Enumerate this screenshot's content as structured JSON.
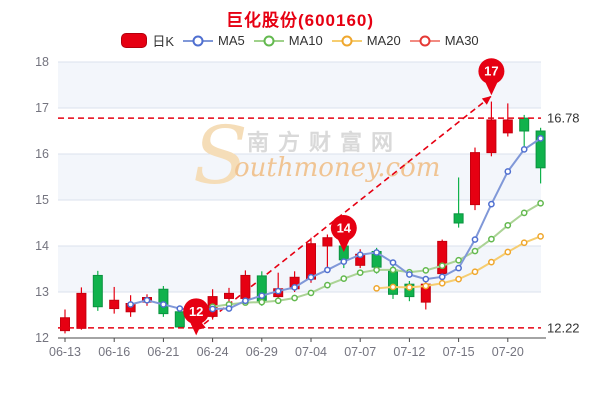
{
  "header": {
    "title": "巨化股份(600160)"
  },
  "legend": {
    "items": [
      {
        "label": "日K"
      },
      {
        "label": "MA5"
      },
      {
        "label": "MA10"
      },
      {
        "label": "MA20"
      },
      {
        "label": "MA30"
      }
    ]
  },
  "watermark": {
    "initial": "S",
    "brand_cn": "南方财富网",
    "brand_en": "outhmoney.com"
  },
  "colors": {
    "title": "#e60012",
    "up": "#e60012",
    "up_border": "#c5000f",
    "down": "#10b24c",
    "down_border": "#0a9340",
    "ma5": "#8098d8",
    "ma5_ring": "#4f6fd0",
    "ma10": "#abd395",
    "ma10_ring": "#63b94f",
    "ma20": "#f6cd70",
    "ma20_ring": "#efa72e",
    "ref": "#e60012",
    "badge": "#e60012",
    "grid": "#dbe2ee",
    "band": "#f3f6fb",
    "axis": "#4a4a4a",
    "tick_text": "#74747f",
    "label_text": "#333333",
    "watermark_cn": "#d9d9d9",
    "watermark_en": "#f0c493",
    "watermark_s": "#f5ddb8"
  },
  "chart_data": {
    "type": "candlestick",
    "title": "巨化股份(600160)",
    "ylim": [
      12,
      18
    ],
    "y_ticks": [
      12,
      13,
      14,
      15,
      16,
      17,
      18
    ],
    "grid": true,
    "legend_position": "top",
    "dates": [
      "06-13",
      "06-14",
      "06-15",
      "06-16",
      "06-17",
      "06-20",
      "06-21",
      "06-22",
      "06-23",
      "06-24",
      "06-27",
      "06-28",
      "06-29",
      "06-30",
      "07-01",
      "07-04",
      "07-05",
      "07-06",
      "07-07",
      "07-08",
      "07-11",
      "07-12",
      "07-13",
      "07-14",
      "07-15",
      "07-18",
      "07-19",
      "07-20",
      "07-21",
      "07-22"
    ],
    "x_tick_indices": [
      0,
      3,
      6,
      9,
      12,
      15,
      18,
      21,
      24,
      27
    ],
    "x_tick_labels": [
      "06-13",
      "06-16",
      "06-21",
      "06-24",
      "06-29",
      "07-04",
      "07-07",
      "07-12",
      "07-15",
      "07-20"
    ],
    "candles": [
      {
        "date": "06-13",
        "open": 12.16,
        "high": 12.62,
        "low": 12.1,
        "close": 12.44
      },
      {
        "date": "06-14",
        "open": 12.21,
        "high": 13.1,
        "low": 12.18,
        "close": 12.97
      },
      {
        "date": "06-15",
        "open": 13.36,
        "high": 13.46,
        "low": 12.59,
        "close": 12.68
      },
      {
        "date": "06-16",
        "open": 12.64,
        "high": 13.11,
        "low": 12.53,
        "close": 12.82
      },
      {
        "date": "06-17",
        "open": 12.57,
        "high": 12.93,
        "low": 12.46,
        "close": 12.75
      },
      {
        "date": "06-20",
        "open": 12.78,
        "high": 12.95,
        "low": 12.7,
        "close": 12.88
      },
      {
        "date": "06-21",
        "open": 13.06,
        "high": 13.13,
        "low": 12.46,
        "close": 12.53
      },
      {
        "date": "06-22",
        "open": 12.57,
        "high": 12.68,
        "low": 12.22,
        "close": 12.24
      },
      {
        "date": "06-23",
        "open": 12.3,
        "high": 12.64,
        "low": 12.22,
        "close": 12.58
      },
      {
        "date": "06-24",
        "open": 12.47,
        "high": 13.06,
        "low": 12.4,
        "close": 12.9
      },
      {
        "date": "06-27",
        "open": 12.86,
        "high": 13.09,
        "low": 12.79,
        "close": 12.97
      },
      {
        "date": "06-28",
        "open": 12.86,
        "high": 13.47,
        "low": 12.77,
        "close": 13.36
      },
      {
        "date": "06-29",
        "open": 13.35,
        "high": 13.45,
        "low": 12.7,
        "close": 12.8
      },
      {
        "date": "06-30",
        "open": 12.9,
        "high": 13.42,
        "low": 12.79,
        "close": 13.07
      },
      {
        "date": "07-01",
        "open": 13.07,
        "high": 13.45,
        "low": 13.0,
        "close": 13.32
      },
      {
        "date": "07-04",
        "open": 13.28,
        "high": 14.18,
        "low": 13.2,
        "close": 14.05
      },
      {
        "date": "07-05",
        "open": 14.0,
        "high": 14.25,
        "low": 13.42,
        "close": 14.18
      },
      {
        "date": "07-06",
        "open": 14.0,
        "high": 14.05,
        "low": 13.52,
        "close": 13.7
      },
      {
        "date": "07-07",
        "open": 13.58,
        "high": 13.93,
        "low": 13.52,
        "close": 13.82
      },
      {
        "date": "07-08",
        "open": 13.88,
        "high": 13.96,
        "low": 13.4,
        "close": 13.54
      },
      {
        "date": "07-11",
        "open": 13.48,
        "high": 13.58,
        "low": 12.85,
        "close": 12.95
      },
      {
        "date": "07-12",
        "open": 13.17,
        "high": 13.24,
        "low": 12.8,
        "close": 12.9
      },
      {
        "date": "07-13",
        "open": 12.78,
        "high": 13.22,
        "low": 12.62,
        "close": 13.17
      },
      {
        "date": "07-14",
        "open": 13.4,
        "high": 14.14,
        "low": 13.36,
        "close": 14.1
      },
      {
        "date": "07-15",
        "open": 14.7,
        "high": 15.49,
        "low": 14.4,
        "close": 14.5
      },
      {
        "date": "07-18",
        "open": 14.9,
        "high": 16.14,
        "low": 14.78,
        "close": 16.03
      },
      {
        "date": "07-19",
        "open": 16.03,
        "high": 17.14,
        "low": 15.95,
        "close": 16.74
      },
      {
        "date": "07-20",
        "open": 16.46,
        "high": 17.1,
        "low": 16.38,
        "close": 16.74
      },
      {
        "date": "07-21",
        "open": 16.78,
        "high": 16.85,
        "low": 16.17,
        "close": 16.5
      },
      {
        "date": "07-22",
        "open": 16.5,
        "high": 16.57,
        "low": 15.36,
        "close": 15.7
      }
    ],
    "series": [
      {
        "name": "MA5",
        "values": [
          null,
          null,
          null,
          null,
          12.73,
          12.82,
          12.73,
          12.64,
          12.6,
          12.63,
          12.64,
          12.81,
          12.92,
          13.02,
          13.1,
          13.32,
          13.48,
          13.66,
          13.81,
          13.86,
          13.64,
          13.38,
          13.28,
          13.33,
          13.52,
          14.14,
          14.91,
          15.62,
          16.1,
          16.34
        ]
      },
      {
        "name": "MA10",
        "values": [
          null,
          null,
          null,
          null,
          null,
          null,
          null,
          null,
          null,
          12.68,
          12.73,
          12.77,
          12.78,
          12.81,
          12.87,
          12.98,
          13.15,
          13.29,
          13.42,
          13.48,
          13.48,
          13.43,
          13.47,
          13.57,
          13.69,
          13.89,
          14.15,
          14.45,
          14.72,
          14.93
        ]
      },
      {
        "name": "MA20",
        "values": [
          null,
          null,
          null,
          null,
          null,
          null,
          null,
          null,
          null,
          null,
          null,
          null,
          null,
          null,
          null,
          null,
          null,
          null,
          null,
          13.08,
          13.11,
          13.1,
          13.13,
          13.19,
          13.28,
          13.44,
          13.65,
          13.87,
          14.07,
          14.21
        ]
      },
      {
        "name": "MA30",
        "values": [
          null,
          null,
          null,
          null,
          null,
          null,
          null,
          null,
          null,
          null,
          null,
          null,
          null,
          null,
          null,
          null,
          null,
          null,
          null,
          null,
          null,
          null,
          null,
          null,
          null,
          null,
          null,
          null,
          null,
          null
        ]
      }
    ],
    "ref_lines": [
      {
        "value": 16.78,
        "label": "16.78"
      },
      {
        "value": 12.22,
        "label": "12.22"
      }
    ],
    "trend_line": {
      "from": {
        "index": 8,
        "value": 12.17
      },
      "to": {
        "index": 26,
        "value": 17.26
      }
    },
    "badges": [
      {
        "label": "12",
        "index": 8,
        "value": 12.58
      },
      {
        "label": "14",
        "index": 17,
        "value": 14.39
      },
      {
        "label": "17",
        "index": 26,
        "value": 17.8
      }
    ]
  }
}
